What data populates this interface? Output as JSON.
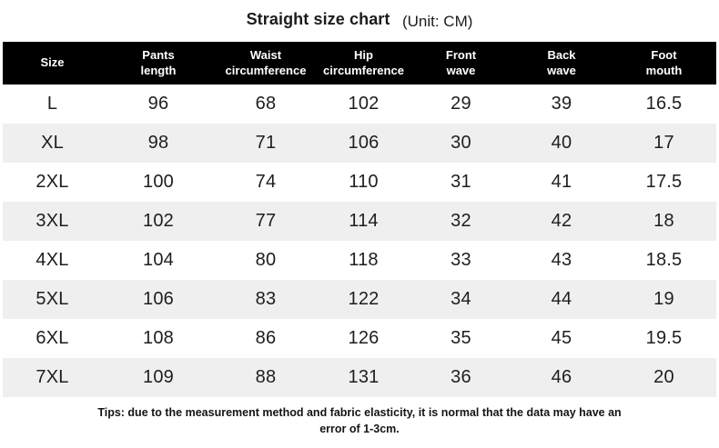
{
  "title": {
    "main": "Straight size chart",
    "unit": "(Unit: CM)"
  },
  "table": {
    "headers": [
      "Size",
      "Pants\nlength",
      "Waist\ncircumference",
      "Hip\ncircumference",
      "Front\nwave",
      "Back\nwave",
      "Foot\nmouth"
    ],
    "rows": [
      [
        "L",
        "96",
        "68",
        "102",
        "29",
        "39",
        "16.5"
      ],
      [
        "XL",
        "98",
        "71",
        "106",
        "30",
        "40",
        "17"
      ],
      [
        "2XL",
        "100",
        "74",
        "110",
        "31",
        "41",
        "17.5"
      ],
      [
        "3XL",
        "102",
        "77",
        "114",
        "32",
        "42",
        "18"
      ],
      [
        "4XL",
        "104",
        "80",
        "118",
        "33",
        "43",
        "18.5"
      ],
      [
        "5XL",
        "106",
        "83",
        "122",
        "34",
        "44",
        "19"
      ],
      [
        "6XL",
        "108",
        "86",
        "126",
        "35",
        "45",
        "19.5"
      ],
      [
        "7XL",
        "109",
        "88",
        "131",
        "36",
        "46",
        "20"
      ]
    ]
  },
  "tips": "Tips: due to the measurement method and fabric elasticity, it is normal that the data may have an error of 1-3cm.",
  "colors": {
    "header_bg": "#000000",
    "header_text": "#ffffff",
    "row_stripe": "#efefef",
    "text": "#1a1a1a"
  },
  "chart_data": {
    "type": "table",
    "title": "Straight size chart",
    "unit": "CM",
    "columns": [
      "Size",
      "Pants length",
      "Waist circumference",
      "Hip circumference",
      "Front wave",
      "Back wave",
      "Foot mouth"
    ],
    "rows": [
      [
        "L",
        96,
        68,
        102,
        29,
        39,
        16.5
      ],
      [
        "XL",
        98,
        71,
        106,
        30,
        40,
        17
      ],
      [
        "2XL",
        100,
        74,
        110,
        31,
        41,
        17.5
      ],
      [
        "3XL",
        102,
        77,
        114,
        32,
        42,
        18
      ],
      [
        "4XL",
        104,
        80,
        118,
        33,
        43,
        18.5
      ],
      [
        "5XL",
        106,
        83,
        122,
        34,
        44,
        19
      ],
      [
        "6XL",
        108,
        86,
        126,
        35,
        45,
        19.5
      ],
      [
        "7XL",
        109,
        88,
        131,
        36,
        46,
        20
      ]
    ],
    "note": "Tips: due to the measurement method and fabric elasticity, it is normal that the data may have an error of 1-3cm."
  }
}
